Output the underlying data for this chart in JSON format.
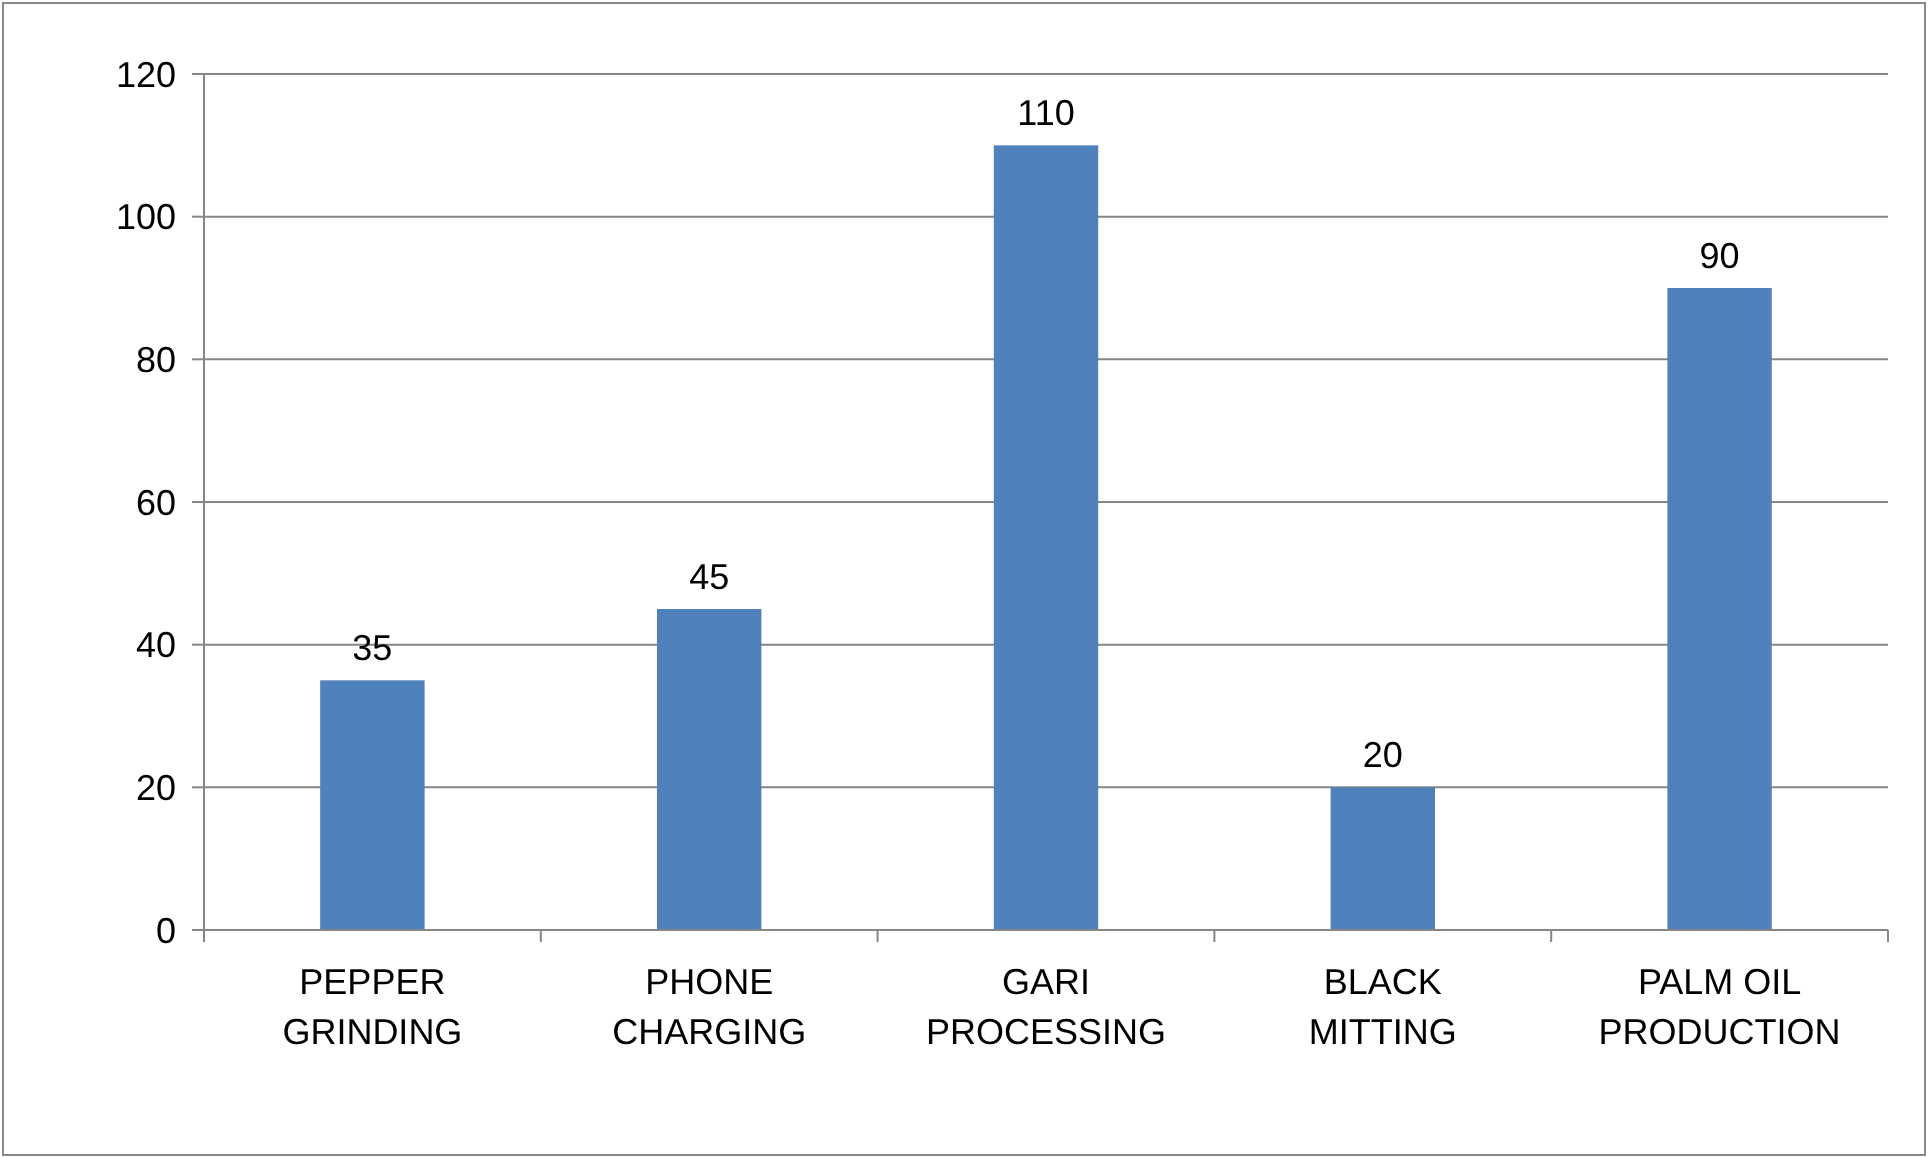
{
  "chart_data": {
    "type": "bar",
    "categories": [
      "PEPPER GRINDING",
      "PHONE CHARGING",
      "GARI PROCESSING",
      "BLACK MITTING",
      "PALM OIL PRODUCTION"
    ],
    "values": [
      35,
      45,
      110,
      20,
      90
    ],
    "color": "#4f81bd",
    "ylim": [
      0,
      120
    ],
    "yticks": [
      0,
      20,
      40,
      60,
      80,
      100,
      120
    ],
    "grid": "y",
    "data_labels": true
  }
}
